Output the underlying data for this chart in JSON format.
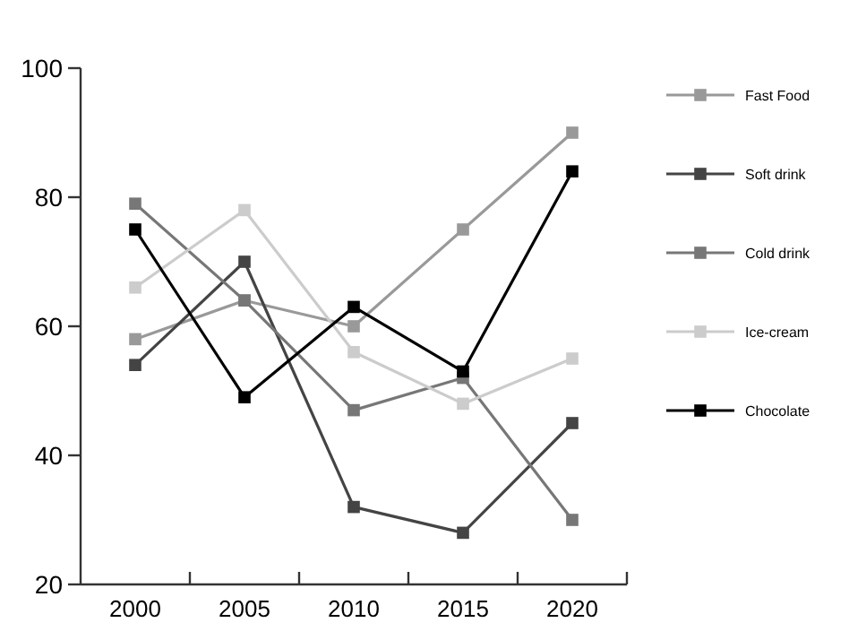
{
  "chart_data": {
    "type": "line",
    "categories": [
      "2000",
      "2005",
      "2010",
      "2015",
      "2020"
    ],
    "ylim": [
      20,
      100
    ],
    "yticks": [
      20,
      40,
      60,
      80,
      100
    ],
    "grid": false,
    "legend": "right",
    "marker": "square",
    "line_style": "solid",
    "series": [
      {
        "name": "Fast Food",
        "color": "#999999",
        "values": [
          58,
          64,
          60,
          75,
          90
        ]
      },
      {
        "name": "Soft drink",
        "color": "#444444",
        "values": [
          54,
          70,
          32,
          28,
          45
        ]
      },
      {
        "name": "Cold drink",
        "color": "#777777",
        "values": [
          79,
          64,
          47,
          52,
          30
        ]
      },
      {
        "name": "Ice-cream",
        "color": "#cccccc",
        "values": [
          66,
          78,
          56,
          48,
          55
        ]
      },
      {
        "name": "Chocolate",
        "color": "#000000",
        "values": [
          75,
          49,
          63,
          53,
          84
        ]
      }
    ]
  }
}
